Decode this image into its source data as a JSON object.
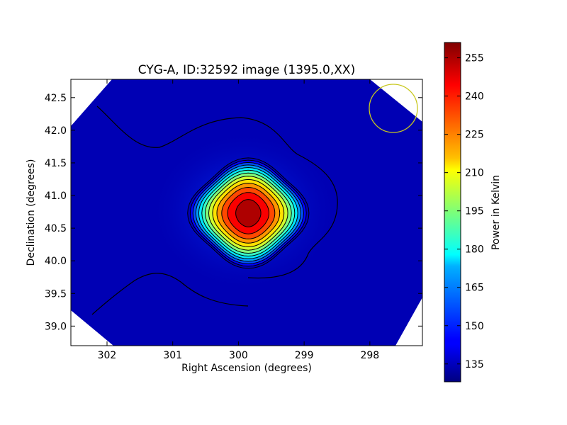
{
  "chart_data": {
    "type": "heatmap",
    "title": "CYG-A, ID:32592 image (1395.0,XX)",
    "xlabel": "Right Ascension (degrees)",
    "ylabel": "Declination (degrees)",
    "xlim": [
      302.55,
      297.2
    ],
    "ylim": [
      38.7,
      42.78
    ],
    "x_ticks": [
      302,
      301,
      300,
      299,
      298
    ],
    "x_tick_labels": [
      "302",
      "301",
      "300",
      "299",
      "298"
    ],
    "y_ticks": [
      39.0,
      39.5,
      40.0,
      40.5,
      41.0,
      41.5,
      42.0,
      42.5
    ],
    "y_tick_labels": [
      "39.0",
      "39.5",
      "40.0",
      "40.5",
      "41.0",
      "41.5",
      "42.0",
      "42.5"
    ],
    "grid": false,
    "colormap": "jet",
    "colorbar": {
      "label": "Power in Kelvin",
      "min": 128,
      "max": 261,
      "ticks": [
        135,
        150,
        165,
        180,
        195,
        210,
        225,
        240,
        255
      ],
      "tick_labels": [
        "135",
        "150",
        "165",
        "180",
        "195",
        "210",
        "225",
        "240",
        "255"
      ]
    },
    "peak": {
      "ra": 299.85,
      "dec": 40.73,
      "value": 261
    },
    "background_level": 130,
    "contour_levels": [
      135,
      145,
      155,
      165,
      175,
      185,
      195,
      205,
      215,
      225,
      235,
      245,
      255
    ],
    "beam_marker": {
      "ra": 297.6,
      "dec": 42.32,
      "radius_deg": 0.38,
      "color": "#c8c81e"
    }
  }
}
